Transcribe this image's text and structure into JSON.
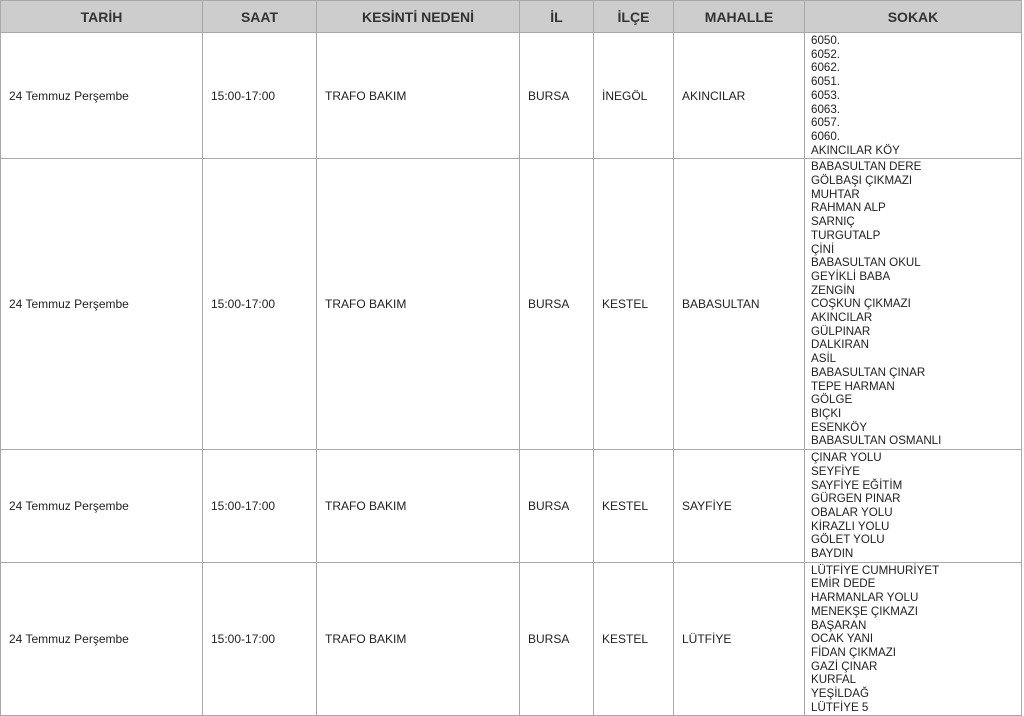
{
  "headers": [
    "TARİH",
    "SAAT",
    "KESİNTİ NEDENİ",
    "İL",
    "İLÇE",
    "MAHALLE",
    "SOKAK"
  ],
  "rows": [
    {
      "tarih": "24 Temmuz Perşembe",
      "saat": "15:00-17:00",
      "neden": "TRAFO BAKIM",
      "il": "BURSA",
      "ilce": "İNEGÖL",
      "mahalle": "AKINCILAR",
      "sokak": [
        "6050.",
        "6052.",
        "6062.",
        "6051.",
        "6053.",
        "6063.",
        "6057.",
        "6060.",
        "AKINCILAR KÖY"
      ]
    },
    {
      "tarih": "24 Temmuz Perşembe",
      "saat": "15:00-17:00",
      "neden": "TRAFO BAKIM",
      "il": "BURSA",
      "ilce": "KESTEL",
      "mahalle": "BABASULTAN",
      "sokak": [
        "BABASULTAN DERE",
        "GÖLBAŞI ÇIKMAZI",
        "MUHTAR",
        "RAHMAN ALP",
        "SARNIÇ",
        "TURGUTALP",
        "ÇİNİ",
        "BABASULTAN OKUL",
        "GEYİKLİ BABA",
        "ZENGİN",
        "COŞKUN ÇIKMAZI",
        "AKINCILAR",
        "GÜLPINAR",
        "DALKIRAN",
        "ASİL",
        "BABASULTAN ÇINAR",
        "TEPE HARMAN",
        "GÖLGE",
        "BIÇKI",
        "ESENKÖY",
        "BABASULTAN OSMANLI"
      ]
    },
    {
      "tarih": "24 Temmuz Perşembe",
      "saat": "15:00-17:00",
      "neden": "TRAFO BAKIM",
      "il": "BURSA",
      "ilce": "KESTEL",
      "mahalle": "SAYFİYE",
      "sokak": [
        "ÇINAR YOLU",
        "SEYFİYE",
        "SAYFİYE EĞİTİM",
        "GÜRGEN PINAR",
        "OBALAR YOLU",
        "KİRAZLI YOLU",
        "GÖLET YOLU",
        "BAYDIN"
      ]
    },
    {
      "tarih": "24 Temmuz Perşembe",
      "saat": "15:00-17:00",
      "neden": "TRAFO BAKIM",
      "il": "BURSA",
      "ilce": "KESTEL",
      "mahalle": "LÜTFİYE",
      "sokak": [
        "LÜTFİYE CUMHURİYET",
        "EMİR DEDE",
        "HARMANLAR YOLU",
        "MENEKŞE ÇIKMAZI",
        "BAŞARAN",
        "OCAK YANI",
        "FİDAN ÇIKMAZI",
        "GAZİ ÇINAR",
        "KURFAL",
        "YEŞİLDAĞ",
        "LÜTFİYE 5"
      ]
    }
  ]
}
